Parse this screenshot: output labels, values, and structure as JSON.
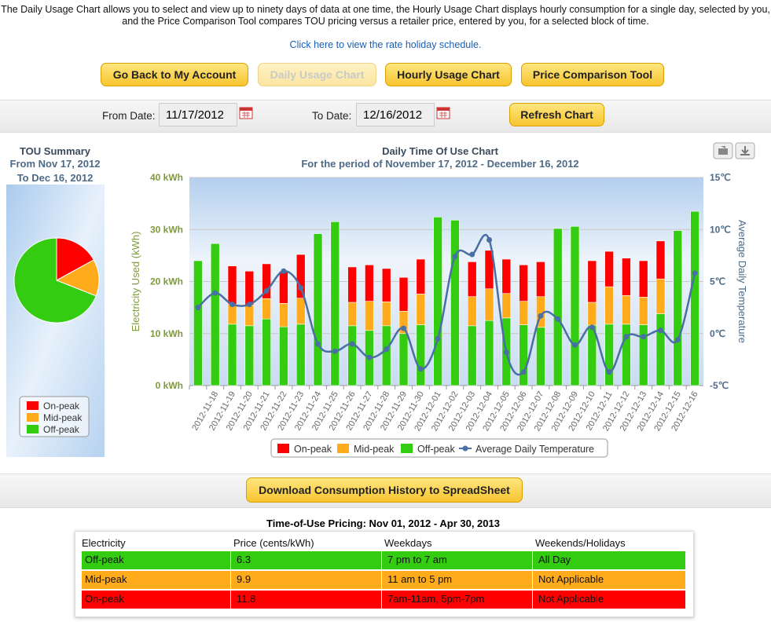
{
  "intro": "The Daily Usage Chart allows you to select and view up to ninety days of data at one time, the Hourly Usage Chart displays hourly consumption for a single day, selected by you, and the Price Comparison Tool compares TOU pricing versus a retailer price, entered by you, for a selected block of time.",
  "holiday_link": "Click here to view the rate holiday schedule.",
  "buttons": [
    "Go Back to My Account",
    "Daily Usage Chart",
    "Hourly Usage Chart",
    "Price Comparison Tool"
  ],
  "date_form": {
    "from_label": "From Date:",
    "from_value": "11/17/2012",
    "to_label": "To Date:",
    "to_value": "12/16/2012",
    "refresh": "Refresh Chart"
  },
  "chart_data": [
    {
      "type": "pie",
      "title": "TOU Summary",
      "subtitle": "From Nov 17, 2012 To Dec 16, 2012",
      "categories": [
        "On-peak",
        "Mid-peak",
        "Off-peak"
      ],
      "values": [
        17,
        14,
        69
      ],
      "colors": [
        "#ff0000",
        "#ffab1c",
        "#33cc10"
      ],
      "legend": "bottom"
    },
    {
      "type": "bar",
      "stacked": true,
      "title": "Daily Time Of Use Chart",
      "subtitle": "For the period of November 17, 2012 - December 16, 2012",
      "y_label": "Electricity Used (kWh)",
      "y2_label": "Average Daily Temperature",
      "categories": [
        null,
        "2012-11-18",
        "2012-11-19",
        "2012-11-20",
        "2012-11-21",
        "2012-11-22",
        "2012-11-23",
        "2012-11-24",
        "2012-11-25",
        "2012-11-26",
        "2012-11-27",
        "2012-11-28",
        "2012-11-29",
        "2012-11-30",
        "2012-12-01",
        "2012-12-02",
        "2012-12-03",
        "2012-12-04",
        "2012-12-05",
        "2012-12-06",
        "2012-12-07",
        "2012-12-08",
        "2012-12-09",
        "2012-12-10",
        "2012-12-11",
        "2012-12-12",
        "2012-12-13",
        "2012-12-14",
        "2012-12-15",
        "2012-12-16"
      ],
      "series": [
        {
          "name": "On-peak",
          "color": "#ff0000",
          "values": [
            0,
            0,
            7.4,
            6.5,
            6.7,
            6.2,
            8.4,
            0,
            0,
            6.8,
            7.0,
            6.4,
            6.5,
            6.7,
            0,
            0,
            6.7,
            7.4,
            6.6,
            7.0,
            6.7,
            0,
            0,
            8.0,
            6.8,
            7.2,
            7.0,
            7.3,
            0,
            0
          ]
        },
        {
          "name": "Mid-peak",
          "color": "#ffab1c",
          "values": [
            0,
            0,
            3.8,
            4.0,
            3.9,
            4.5,
            5.0,
            0,
            0,
            4.5,
            5.6,
            4.6,
            4.3,
            5.9,
            0,
            0,
            5.6,
            6.1,
            4.7,
            4.5,
            5.9,
            0,
            0,
            4.4,
            7.2,
            5.5,
            5.3,
            6.7,
            0,
            0
          ]
        },
        {
          "name": "Off-peak",
          "color": "#33cc10",
          "values": [
            24.0,
            27.3,
            11.8,
            11.5,
            12.8,
            11.3,
            11.8,
            29.2,
            31.5,
            11.5,
            10.6,
            11.5,
            10.0,
            11.7,
            32.4,
            31.8,
            11.5,
            12.5,
            13.0,
            11.7,
            11.2,
            30.2,
            30.6,
            11.6,
            11.8,
            11.8,
            11.7,
            13.8,
            29.8,
            33.5
          ]
        },
        {
          "name": "Average Daily Temperature",
          "type": "line",
          "axis": "y2",
          "color": "#4a6fa5",
          "values": [
            2.5,
            3.9,
            2.8,
            2.8,
            4.1,
            6.0,
            4.4,
            -1.0,
            -1.7,
            -1.0,
            -2.3,
            -1.5,
            0.5,
            -3.4,
            -0.5,
            7.4,
            7.6,
            9.0,
            -1.8,
            -3.7,
            1.7,
            1.4,
            -1.1,
            0.6,
            -3.7,
            -0.3,
            -0.3,
            0.3,
            -0.6,
            5.8
          ]
        }
      ],
      "stack_order": [
        2,
        1,
        0
      ],
      "ylim": [
        0,
        40
      ],
      "yticks": [
        {
          "value": 0,
          "label": "0 kWh"
        },
        {
          "value": 10,
          "label": "10 kWh"
        },
        {
          "value": 20,
          "label": "20 kWh"
        },
        {
          "value": 30,
          "label": "30 kWh"
        },
        {
          "value": 40,
          "label": "40 kWh"
        }
      ],
      "y2lim": [
        -5,
        15
      ],
      "y2ticks": [
        {
          "value": -5,
          "label": "-5℃"
        },
        {
          "value": 0,
          "label": "0℃"
        },
        {
          "value": 5,
          "label": "5℃"
        },
        {
          "value": 10,
          "label": "10℃"
        },
        {
          "value": 15,
          "label": "15℃"
        }
      ],
      "grid": true,
      "legend": "bottom"
    }
  ],
  "download_button": "Download Consumption History to SpreadSheet",
  "pricing": {
    "title": "Time-of-Use Pricing: Nov 01, 2012 - Apr 30, 2013",
    "columns": [
      "Electricity",
      "Price (cents/kWh)",
      "Weekdays",
      "Weekends/Holidays"
    ],
    "rows": [
      [
        "Off-peak",
        "6.3",
        "7 pm to 7 am",
        "All Day"
      ],
      [
        "Mid-peak",
        "9.9",
        "11 am to 5 pm",
        "Not Applicable"
      ],
      [
        "On-peak",
        "11.8",
        "7am-11am, 5pm-7pm",
        "Not Applicable"
      ]
    ],
    "row_colors": [
      "#33cc10",
      "#ffab1c",
      "#ff0000"
    ]
  }
}
